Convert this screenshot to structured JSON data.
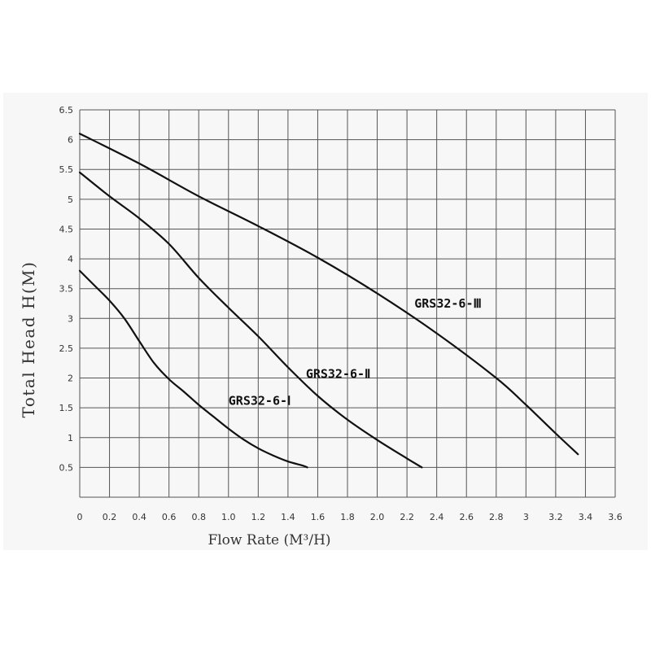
{
  "chart_data": {
    "type": "line",
    "xlabel": "Flow Rate (M³/H)",
    "ylabel": "Total Head H(M)",
    "xlim": [
      0,
      3.6
    ],
    "ylim": [
      0,
      6.5
    ],
    "x_ticks": [
      "0",
      "0.2",
      "0.4",
      "0.6",
      "0.8",
      "1.0",
      "1.2",
      "1.4",
      "1.6",
      "1.8",
      "2.0",
      "2.2",
      "2.4",
      "2.6",
      "2.8",
      "3",
      "3.2",
      "3.4",
      "3.6"
    ],
    "y_ticks": [
      "0.5",
      "1",
      "1.5",
      "2",
      "2.5",
      "3",
      "3.5",
      "4",
      "4.5",
      "5",
      "5.5",
      "6",
      "6.5"
    ],
    "grid": true,
    "series": [
      {
        "name": "GRS32-6-Ⅰ",
        "x": [
          0,
          0.1,
          0.2,
          0.3,
          0.4,
          0.5,
          0.6,
          0.7,
          0.8,
          0.9,
          1.0,
          1.1,
          1.2,
          1.3,
          1.4,
          1.5,
          1.53
        ],
        "y": [
          3.8,
          3.55,
          3.3,
          3.0,
          2.62,
          2.25,
          1.98,
          1.77,
          1.55,
          1.35,
          1.15,
          0.97,
          0.82,
          0.7,
          0.6,
          0.53,
          0.5
        ]
      },
      {
        "name": "GRS32-6-Ⅱ",
        "x": [
          0,
          0.2,
          0.4,
          0.6,
          0.8,
          1.0,
          1.2,
          1.4,
          1.6,
          1.8,
          2.0,
          2.2,
          2.3
        ],
        "y": [
          5.45,
          5.05,
          4.68,
          4.25,
          3.68,
          3.18,
          2.7,
          2.18,
          1.7,
          1.3,
          0.96,
          0.65,
          0.5
        ]
      },
      {
        "name": "GRS32-6-Ⅲ",
        "x": [
          0,
          0.4,
          0.8,
          1.2,
          1.6,
          2.0,
          2.4,
          2.8,
          3.0,
          3.2,
          3.35
        ],
        "y": [
          6.1,
          5.6,
          5.05,
          4.55,
          4.02,
          3.42,
          2.75,
          2.0,
          1.55,
          1.07,
          0.72
        ]
      }
    ]
  }
}
